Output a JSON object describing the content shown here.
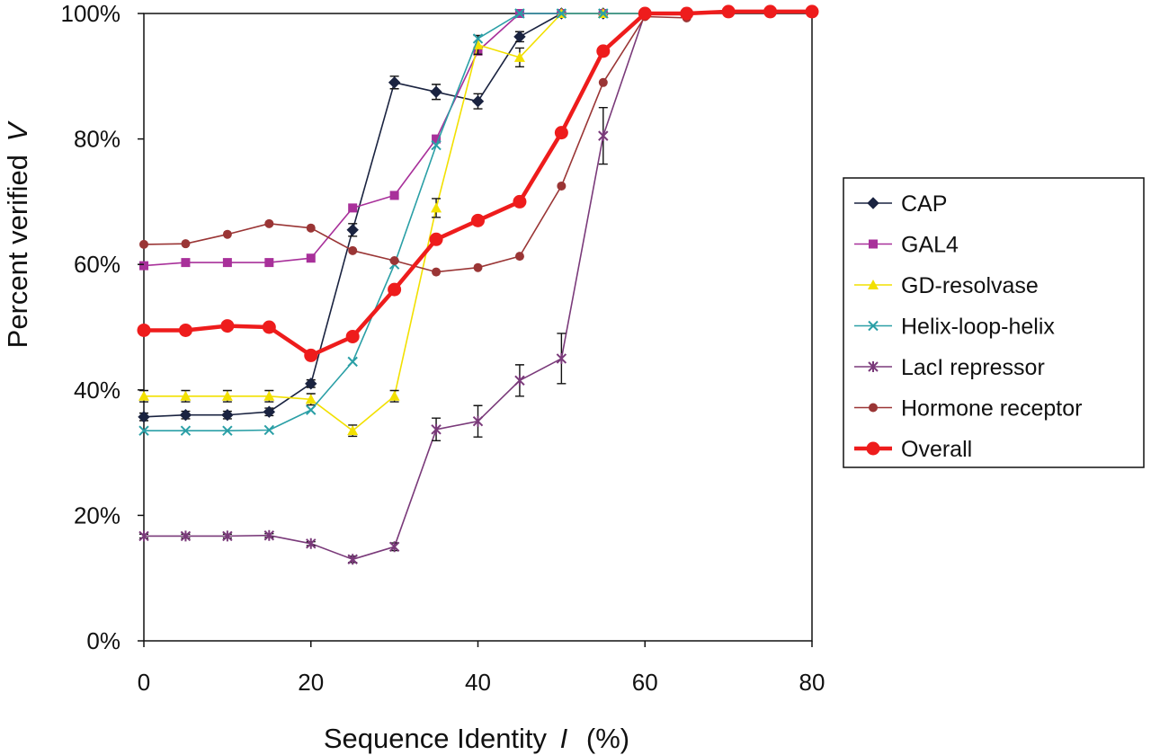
{
  "chart_data": {
    "type": "line",
    "title": "",
    "xlabel": "Sequence Identity",
    "xlabel_var": "I",
    "xlabel_unit": "(%)",
    "ylabel": "Percent verified",
    "ylabel_var": "V",
    "xlim": [
      0,
      80
    ],
    "ylim": [
      0,
      100
    ],
    "x_ticks": [
      0,
      20,
      40,
      60,
      80
    ],
    "y_ticks": [
      0,
      20,
      40,
      60,
      80,
      100
    ],
    "y_tick_format": "percent",
    "grid": false,
    "legend_position": "right",
    "x": [
      0,
      5,
      10,
      15,
      20,
      25,
      30,
      35,
      40,
      45,
      50,
      55,
      60,
      65,
      70,
      75,
      80
    ],
    "series": [
      {
        "name": "CAP",
        "color": "#1a2340",
        "marker": "diamond",
        "width": 1.6,
        "x": [
          0,
          5,
          10,
          15,
          20,
          25,
          30,
          35,
          40,
          45,
          50,
          55,
          60,
          65
        ],
        "values": [
          35.7,
          36,
          36,
          36.5,
          41,
          65.5,
          89,
          87.5,
          86,
          96.3,
          100,
          100,
          100,
          100
        ],
        "errors": [
          0.6,
          0.6,
          0.6,
          0.6,
          0.6,
          1,
          1,
          1.2,
          1.2,
          0.8,
          0,
          0,
          0,
          0
        ]
      },
      {
        "name": "GAL4",
        "color": "#a8309a",
        "marker": "square",
        "width": 1.6,
        "x": [
          0,
          5,
          10,
          15,
          20,
          25,
          30,
          35,
          40,
          45,
          50,
          55,
          60,
          65
        ],
        "values": [
          59.8,
          60.3,
          60.3,
          60.3,
          61,
          69,
          71,
          80,
          94,
          100,
          100,
          100,
          100,
          100
        ],
        "errors": [
          0,
          0,
          0,
          0,
          0,
          0,
          0,
          0,
          0,
          0,
          0,
          0,
          0,
          0
        ]
      },
      {
        "name": "GD-resolvase",
        "color": "#f2e000",
        "marker": "triangle",
        "width": 1.6,
        "x": [
          0,
          5,
          10,
          15,
          20,
          25,
          30,
          35,
          40,
          45,
          50,
          55,
          60
        ],
        "values": [
          39,
          39,
          39,
          39,
          38.5,
          33.5,
          39,
          69,
          95,
          93,
          100,
          100,
          100
        ],
        "errors": [
          0.9,
          0.9,
          0.9,
          0.9,
          0.9,
          0.9,
          0.9,
          1.5,
          1.5,
          1.5,
          0,
          0,
          0
        ]
      },
      {
        "name": "Helix-loop-helix",
        "color": "#2a9fa6",
        "marker": "x",
        "width": 1.6,
        "x": [
          0,
          5,
          10,
          15,
          20,
          25,
          30,
          35,
          40,
          45,
          50,
          55,
          60
        ],
        "values": [
          33.5,
          33.5,
          33.5,
          33.6,
          36.8,
          44.5,
          60,
          79,
          96,
          100,
          100,
          100,
          100
        ],
        "errors": [
          0,
          0,
          0,
          0,
          0,
          0,
          0,
          0,
          0,
          0,
          0,
          0,
          0
        ]
      },
      {
        "name": "LacI repressor",
        "color": "#7a3a7a",
        "marker": "star",
        "width": 1.6,
        "x": [
          0,
          5,
          10,
          15,
          20,
          25,
          30,
          35,
          40,
          45,
          50,
          55,
          60
        ],
        "values": [
          16.7,
          16.7,
          16.7,
          16.8,
          15.5,
          13,
          15,
          33.7,
          35,
          41.5,
          45,
          80.5,
          100
        ],
        "errors": [
          0.3,
          0.3,
          0.3,
          0.3,
          0.3,
          0.5,
          0.6,
          1.8,
          2.5,
          2.5,
          4,
          4.5,
          0
        ]
      },
      {
        "name": "Hormone receptor",
        "color": "#9a3535",
        "marker": "circle",
        "width": 1.6,
        "x": [
          0,
          5,
          10,
          15,
          20,
          25,
          30,
          35,
          40,
          45,
          50,
          55,
          60,
          65
        ],
        "values": [
          63.2,
          63.3,
          64.8,
          66.5,
          65.8,
          62.2,
          60.6,
          58.8,
          59.5,
          61.3,
          72.5,
          89,
          99.5,
          99.3
        ],
        "errors": [
          0,
          0,
          0,
          0,
          0,
          0,
          0,
          0,
          0,
          0,
          0,
          0,
          0,
          0
        ]
      },
      {
        "name": "Overall",
        "color": "#ee1c1c",
        "marker": "circle-lg",
        "width": 4.5,
        "x": [
          0,
          5,
          10,
          15,
          20,
          25,
          30,
          35,
          40,
          45,
          50,
          55,
          60,
          65,
          70,
          75,
          80
        ],
        "values": [
          49.5,
          49.5,
          50.2,
          50,
          45.5,
          48.5,
          56,
          64,
          67,
          70,
          81,
          94,
          100,
          100,
          100.3,
          100.3,
          100.3
        ],
        "errors": [
          0,
          0,
          0,
          0,
          0,
          0,
          0,
          0,
          0,
          0,
          0,
          0,
          0,
          0,
          0,
          0,
          0
        ]
      }
    ]
  }
}
